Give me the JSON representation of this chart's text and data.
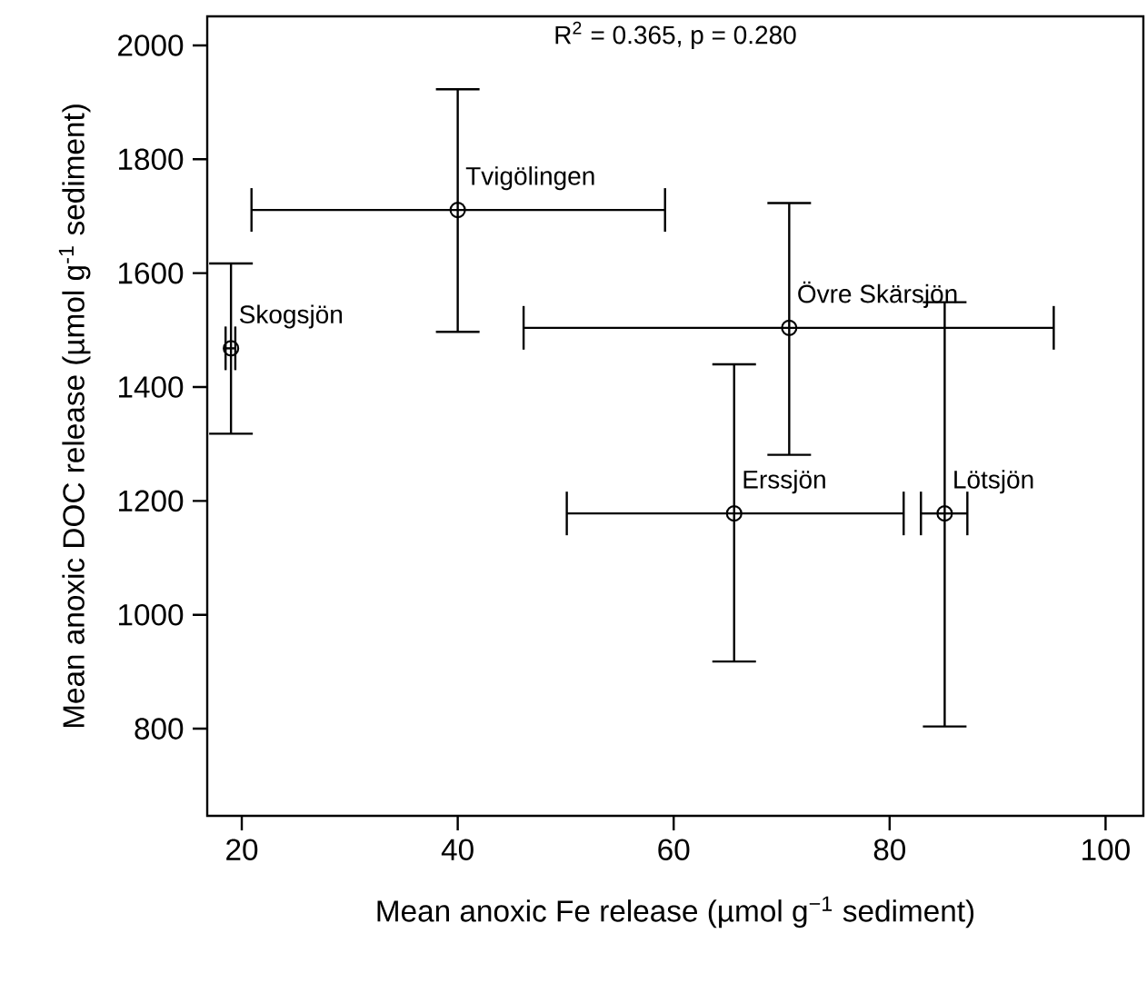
{
  "chart_data": {
    "type": "scatter",
    "xlabel": "Mean anoxic Fe release (µmol g$^{−1}$ sediment)",
    "ylabel": "Mean anoxic DOC release (µmol g$^{-1}$ sediment)",
    "x": [
      19.0,
      40.0,
      70.7,
      65.6,
      85.1
    ],
    "values": [
      1468,
      1711,
      1504,
      1178,
      1178
    ],
    "errors": [
      [
        1318,
        1617
      ],
      [
        1497,
        1923
      ],
      [
        1281,
        1723
      ],
      [
        918,
        1440
      ],
      [
        804,
        1549
      ]
    ],
    "xerrors": [
      [
        18.5,
        19.4
      ],
      [
        20.9,
        59.2
      ],
      [
        46.1,
        95.2
      ],
      [
        50.1,
        81.3
      ],
      [
        82.9,
        87.2
      ]
    ],
    "color": "#000000",
    "marker": "circle",
    "xlim": [
      16.8,
      103.5
    ],
    "ylim": [
      647,
      2051
    ],
    "xticks": [
      20,
      40,
      60,
      80,
      100
    ],
    "yticks": [
      800,
      1000,
      1200,
      1400,
      1600,
      1800,
      2000
    ],
    "grid": false,
    "annotations": [
      "R$^{2}$ = 0.365, p = 0.280",
      {
        "text": "Skogsjön",
        "x": 19.0,
        "y": 1468
      },
      {
        "text": "Tvigölingen",
        "x": 40.0,
        "y": 1711
      },
      {
        "text": "Övre Skärsjön",
        "x": 70.7,
        "y": 1504
      },
      {
        "text": "Erssjön",
        "x": 65.6,
        "y": 1178
      },
      {
        "text": "Lötsjön",
        "x": 85.1,
        "y": 1178
      }
    ]
  }
}
